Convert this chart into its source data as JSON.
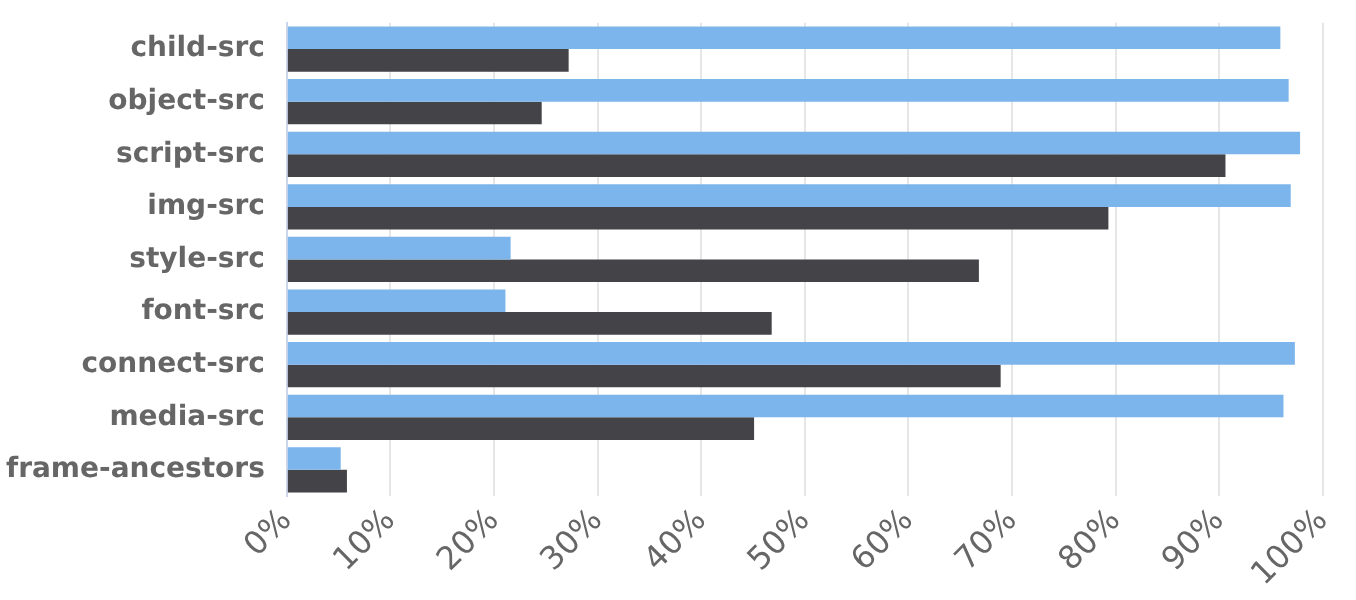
{
  "chart_data": {
    "type": "bar",
    "orientation": "horizontal",
    "categories": [
      "child-src",
      "object-src",
      "script-src",
      "img-src",
      "style-src",
      "font-src",
      "connect-src",
      "media-src",
      "frame-ancestors"
    ],
    "series": [
      {
        "color": "#7cb5ec",
        "values": [
          95.9,
          96.7,
          97.8,
          96.9,
          21.6,
          21.1,
          97.3,
          96.2,
          5.2
        ]
      },
      {
        "color": "#434348",
        "values": [
          27.2,
          24.6,
          90.6,
          79.3,
          66.8,
          46.8,
          68.9,
          45.1,
          5.8
        ]
      }
    ],
    "xlim": [
      0,
      100
    ],
    "xticks": [
      {
        "value": 0,
        "label": "0%"
      },
      {
        "value": 10,
        "label": "10%"
      },
      {
        "value": 20,
        "label": "20%"
      },
      {
        "value": 30,
        "label": "30%"
      },
      {
        "value": 40,
        "label": "40%"
      },
      {
        "value": 50,
        "label": "50%"
      },
      {
        "value": 60,
        "label": "60%"
      },
      {
        "value": 70,
        "label": "70%"
      },
      {
        "value": 80,
        "label": "80%"
      },
      {
        "value": 90,
        "label": "90%"
      },
      {
        "value": 100,
        "label": "100%"
      }
    ],
    "grid": "x",
    "legend": false
  }
}
